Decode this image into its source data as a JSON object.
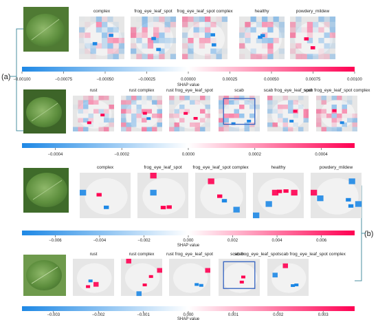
{
  "panel_labels": {
    "a": "(a)",
    "b": "(b)"
  },
  "colors": {
    "negative": "#1e88e5",
    "positive": "#ff0052",
    "neutral": "#ffffff",
    "leaf_dark": "#3f6b2a",
    "leaf_light": "#8fb86a",
    "box": "#3060c0"
  },
  "chart_data": [
    {
      "type": "heatmap",
      "panel": "(a)",
      "row": 1,
      "classes": [
        "complex",
        "frog_eye_leaf_spot",
        "frog_eye_leaf_spot complex",
        "healthy",
        "powdery_mildew"
      ],
      "colorbar": {
        "ticks": [
          "−0.00100",
          "−0.00075",
          "−0.00050",
          "−0.00025",
          "0.00000",
          "0.00025",
          "0.00050",
          "0.00075",
          "0.00100"
        ],
        "label": "SHAP value",
        "range": [
          -0.001,
          0.001
        ]
      }
    },
    {
      "type": "heatmap",
      "panel": "(a)",
      "row": 2,
      "classes": [
        "rust",
        "rust complex",
        "rust frog_eye_leaf_spot",
        "scab",
        "scab frog_eye_leaf_spot",
        "scab frog_eye_leaf_spot complex"
      ],
      "highlighted_class": "scab",
      "colorbar": {
        "ticks": [
          "−0.0004",
          "−0.0002",
          "0.0000",
          "0.0002",
          "0.0004"
        ],
        "label": "",
        "range": [
          -0.0005,
          0.0005
        ]
      }
    },
    {
      "type": "heatmap",
      "panel": "(b)",
      "row": 1,
      "classes": [
        "complex",
        "frog_eye_leaf_spot",
        "frog_eye_leaf_spot complex",
        "healthy",
        "powdery_mildew"
      ],
      "colorbar": {
        "ticks": [
          "−0.006",
          "−0.004",
          "−0.002",
          "0.000",
          "0.002",
          "0.004",
          "0.006"
        ],
        "label": "SHAP value",
        "range": [
          -0.0075,
          0.0075
        ]
      }
    },
    {
      "type": "heatmap",
      "panel": "(b)",
      "row": 2,
      "classes": [
        "rust",
        "rust complex",
        "rust frog_eye_leaf_spot",
        "scab",
        "scab frog_eye_leaf_spotscab frog_eye_leaf_spot complex"
      ],
      "highlighted_class": "scab",
      "colorbar": {
        "ticks": [
          "−0.003",
          "−0.002",
          "−0.001",
          "0.000",
          "0.001",
          "0.002",
          "0.003"
        ],
        "label": "SHAP value",
        "range": [
          -0.0037,
          0.0037
        ]
      }
    }
  ]
}
